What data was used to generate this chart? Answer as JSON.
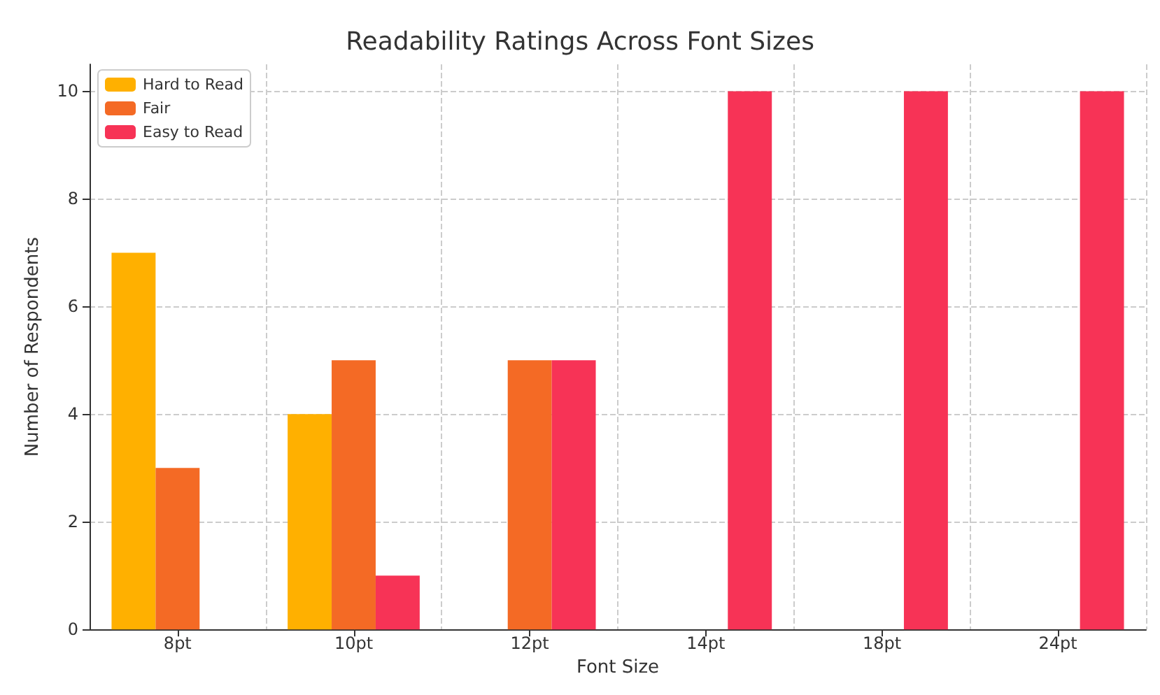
{
  "chart_data": {
    "type": "bar",
    "title": "Readability Ratings Across Font Sizes",
    "xlabel": "Font Size",
    "ylabel": "Number of Respondents",
    "categories": [
      "8pt",
      "10pt",
      "12pt",
      "14pt",
      "18pt",
      "24pt"
    ],
    "series": [
      {
        "name": "Hard to Read",
        "color": "#ffb000",
        "values": [
          7,
          4,
          0,
          0,
          0,
          0
        ]
      },
      {
        "name": "Fair",
        "color": "#f46a25",
        "values": [
          3,
          5,
          5,
          0,
          0,
          0
        ]
      },
      {
        "name": "Easy to Read",
        "color": "#f73356",
        "values": [
          0,
          1,
          5,
          10,
          10,
          10
        ]
      }
    ],
    "ylim": [
      0,
      10.5
    ],
    "yticks": [
      0,
      2,
      4,
      6,
      8,
      10
    ],
    "grid": true,
    "legend": "top left"
  }
}
